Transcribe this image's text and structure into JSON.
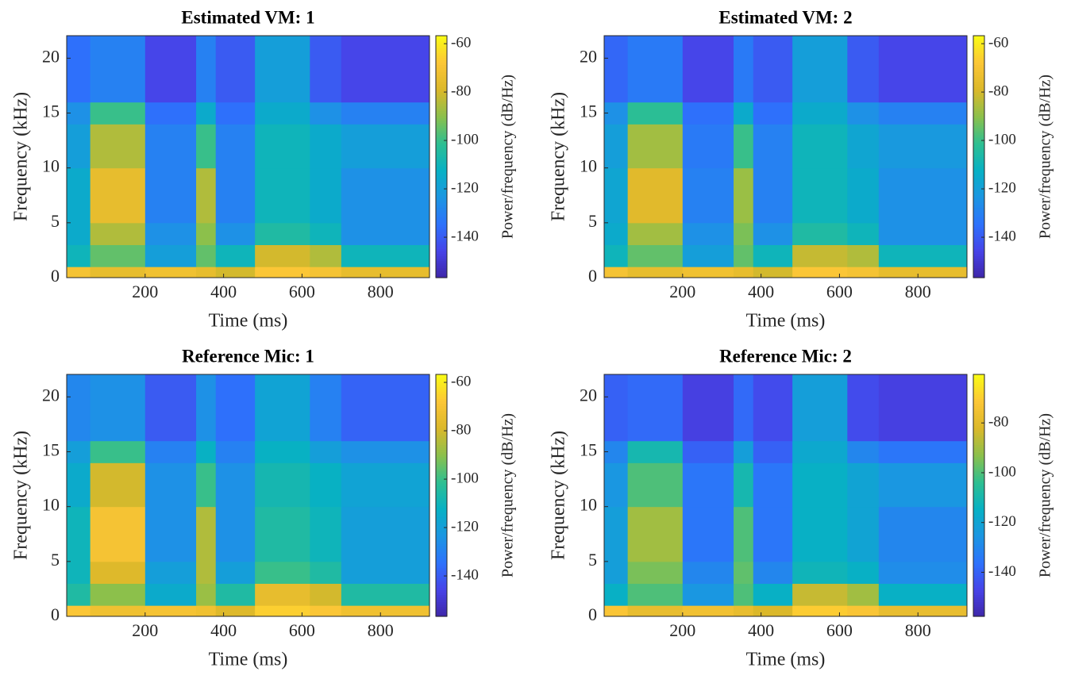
{
  "chart_data": [
    {
      "type": "heatmap",
      "title": "Estimated VM: 1",
      "xlabel": "Time (ms)",
      "ylabel": "Frequency (kHz)",
      "colorbar_label": "Power/frequency (dB/Hz)",
      "x_edges": [
        0,
        60,
        200,
        330,
        380,
        480,
        620,
        700,
        925
      ],
      "y_edges": [
        0,
        1,
        3,
        5,
        10,
        14,
        16,
        22.05
      ],
      "values": [
        [
          -70,
          -75,
          -72,
          -75,
          -80,
          -68,
          -70,
          -75
        ],
        [
          -110,
          -95,
          -120,
          -95,
          -110,
          -80,
          -85,
          -110
        ],
        [
          -115,
          -85,
          -125,
          -90,
          -125,
          -105,
          -110,
          -125
        ],
        [
          -115,
          -75,
          -130,
          -85,
          -130,
          -110,
          -115,
          -125
        ],
        [
          -120,
          -85,
          -130,
          -100,
          -130,
          -110,
          -115,
          -120
        ],
        [
          -125,
          -100,
          -135,
          -115,
          -135,
          -115,
          -125,
          -130
        ],
        [
          -135,
          -130,
          -145,
          -130,
          -140,
          -120,
          -140,
          -145
        ]
      ],
      "xlim": [
        0,
        925
      ],
      "ylim": [
        0,
        22.05
      ],
      "xticks": [
        200,
        400,
        600,
        800
      ],
      "yticks": [
        0,
        5,
        10,
        15,
        20
      ],
      "clim": [
        -156.7,
        -56.7
      ],
      "cticks": [
        -140,
        -120,
        -100,
        -80,
        -60
      ],
      "colormap": [
        "#3e26a8",
        "#4743e8",
        "#2d72fc",
        "#1b96e2",
        "#07b1c4",
        "#2ebf91",
        "#8cc04b",
        "#dbb82a",
        "#fcc636",
        "#f9fb15"
      ]
    },
    {
      "type": "heatmap",
      "title": "Estimated VM: 2",
      "xlabel": "Time (ms)",
      "ylabel": "Frequency (kHz)",
      "colorbar_label": "Power/frequency (dB/Hz)",
      "x_edges": [
        0,
        60,
        200,
        330,
        380,
        480,
        620,
        700,
        925
      ],
      "y_edges": [
        0,
        1,
        3,
        5,
        10,
        14,
        16,
        22.05
      ],
      "values": [
        [
          -70,
          -75,
          -72,
          -75,
          -80,
          -68,
          -70,
          -75
        ],
        [
          -110,
          -95,
          -120,
          -95,
          -110,
          -82,
          -85,
          -110
        ],
        [
          -115,
          -87,
          -125,
          -92,
          -125,
          -105,
          -110,
          -125
        ],
        [
          -117,
          -77,
          -130,
          -88,
          -130,
          -110,
          -115,
          -125
        ],
        [
          -120,
          -87,
          -132,
          -100,
          -130,
          -110,
          -117,
          -122
        ],
        [
          -125,
          -102,
          -135,
          -115,
          -135,
          -115,
          -125,
          -130
        ],
        [
          -137,
          -132,
          -145,
          -132,
          -140,
          -120,
          -140,
          -145
        ]
      ],
      "xlim": [
        0,
        925
      ],
      "ylim": [
        0,
        22.05
      ],
      "xticks": [
        200,
        400,
        600,
        800
      ],
      "yticks": [
        0,
        5,
        10,
        15,
        20
      ],
      "clim": [
        -156.7,
        -56.7
      ],
      "cticks": [
        -140,
        -120,
        -100,
        -80,
        -60
      ],
      "colormap": [
        "#3e26a8",
        "#4743e8",
        "#2d72fc",
        "#1b96e2",
        "#07b1c4",
        "#2ebf91",
        "#8cc04b",
        "#dbb82a",
        "#fcc636",
        "#f9fb15"
      ]
    },
    {
      "type": "heatmap",
      "title": "Reference Mic: 1",
      "xlabel": "Time (ms)",
      "ylabel": "Frequency (kHz)",
      "colorbar_label": "Power/frequency (dB/Hz)",
      "x_edges": [
        0,
        60,
        200,
        330,
        380,
        480,
        620,
        700,
        925
      ],
      "y_edges": [
        0,
        1,
        3,
        5,
        10,
        14,
        16,
        22.05
      ],
      "values": [
        [
          -68,
          -72,
          -70,
          -72,
          -78,
          -66,
          -68,
          -72
        ],
        [
          -105,
          -90,
          -115,
          -88,
          -105,
          -75,
          -80,
          -105
        ],
        [
          -110,
          -78,
          -120,
          -85,
          -120,
          -100,
          -105,
          -120
        ],
        [
          -110,
          -70,
          -125,
          -85,
          -125,
          -105,
          -110,
          -120
        ],
        [
          -115,
          -80,
          -125,
          -100,
          -125,
          -108,
          -112,
          -118
        ],
        [
          -120,
          -100,
          -130,
          -112,
          -130,
          -112,
          -120,
          -125
        ],
        [
          -128,
          -125,
          -140,
          -125,
          -135,
          -118,
          -130,
          -138
        ]
      ],
      "xlim": [
        0,
        925
      ],
      "ylim": [
        0,
        22.05
      ],
      "xticks": [
        200,
        400,
        600,
        800
      ],
      "yticks": [
        0,
        5,
        10,
        15,
        20
      ],
      "clim": [
        -156.7,
        -56.7
      ],
      "cticks": [
        -140,
        -120,
        -100,
        -80,
        -60
      ],
      "colormap": [
        "#3e26a8",
        "#4743e8",
        "#2d72fc",
        "#1b96e2",
        "#07b1c4",
        "#2ebf91",
        "#8cc04b",
        "#dbb82a",
        "#fcc636",
        "#f9fb15"
      ]
    },
    {
      "type": "heatmap",
      "title": "Reference Mic: 2",
      "xlabel": "Time (ms)",
      "ylabel": "Frequency (kHz)",
      "colorbar_label": "Power/frequency (dB/Hz)",
      "x_edges": [
        0,
        60,
        200,
        330,
        380,
        480,
        620,
        700,
        925
      ],
      "y_edges": [
        0,
        1,
        3,
        5,
        10,
        14,
        16,
        22.05
      ],
      "values": [
        [
          -72,
          -78,
          -75,
          -78,
          -82,
          -70,
          -72,
          -78
        ],
        [
          -115,
          -100,
          -125,
          -100,
          -115,
          -85,
          -90,
          -115
        ],
        [
          -122,
          -95,
          -130,
          -98,
          -130,
          -112,
          -115,
          -128
        ],
        [
          -122,
          -90,
          -135,
          -100,
          -135,
          -115,
          -120,
          -130
        ],
        [
          -125,
          -100,
          -135,
          -110,
          -135,
          -115,
          -120,
          -125
        ],
        [
          -130,
          -110,
          -140,
          -122,
          -140,
          -118,
          -130,
          -135
        ],
        [
          -140,
          -138,
          -148,
          -138,
          -145,
          -122,
          -145,
          -148
        ]
      ],
      "xlim": [
        0,
        925
      ],
      "ylim": [
        0,
        22.05
      ],
      "xticks": [
        200,
        400,
        600,
        800
      ],
      "yticks": [
        0,
        5,
        10,
        15,
        20
      ],
      "clim": [
        -157.7,
        -60.5
      ],
      "cticks": [
        -140,
        -120,
        -100,
        -80
      ],
      "colormap": [
        "#3e26a8",
        "#4743e8",
        "#2d72fc",
        "#1b96e2",
        "#07b1c4",
        "#2ebf91",
        "#8cc04b",
        "#dbb82a",
        "#fcc636",
        "#f9fb15"
      ]
    }
  ]
}
